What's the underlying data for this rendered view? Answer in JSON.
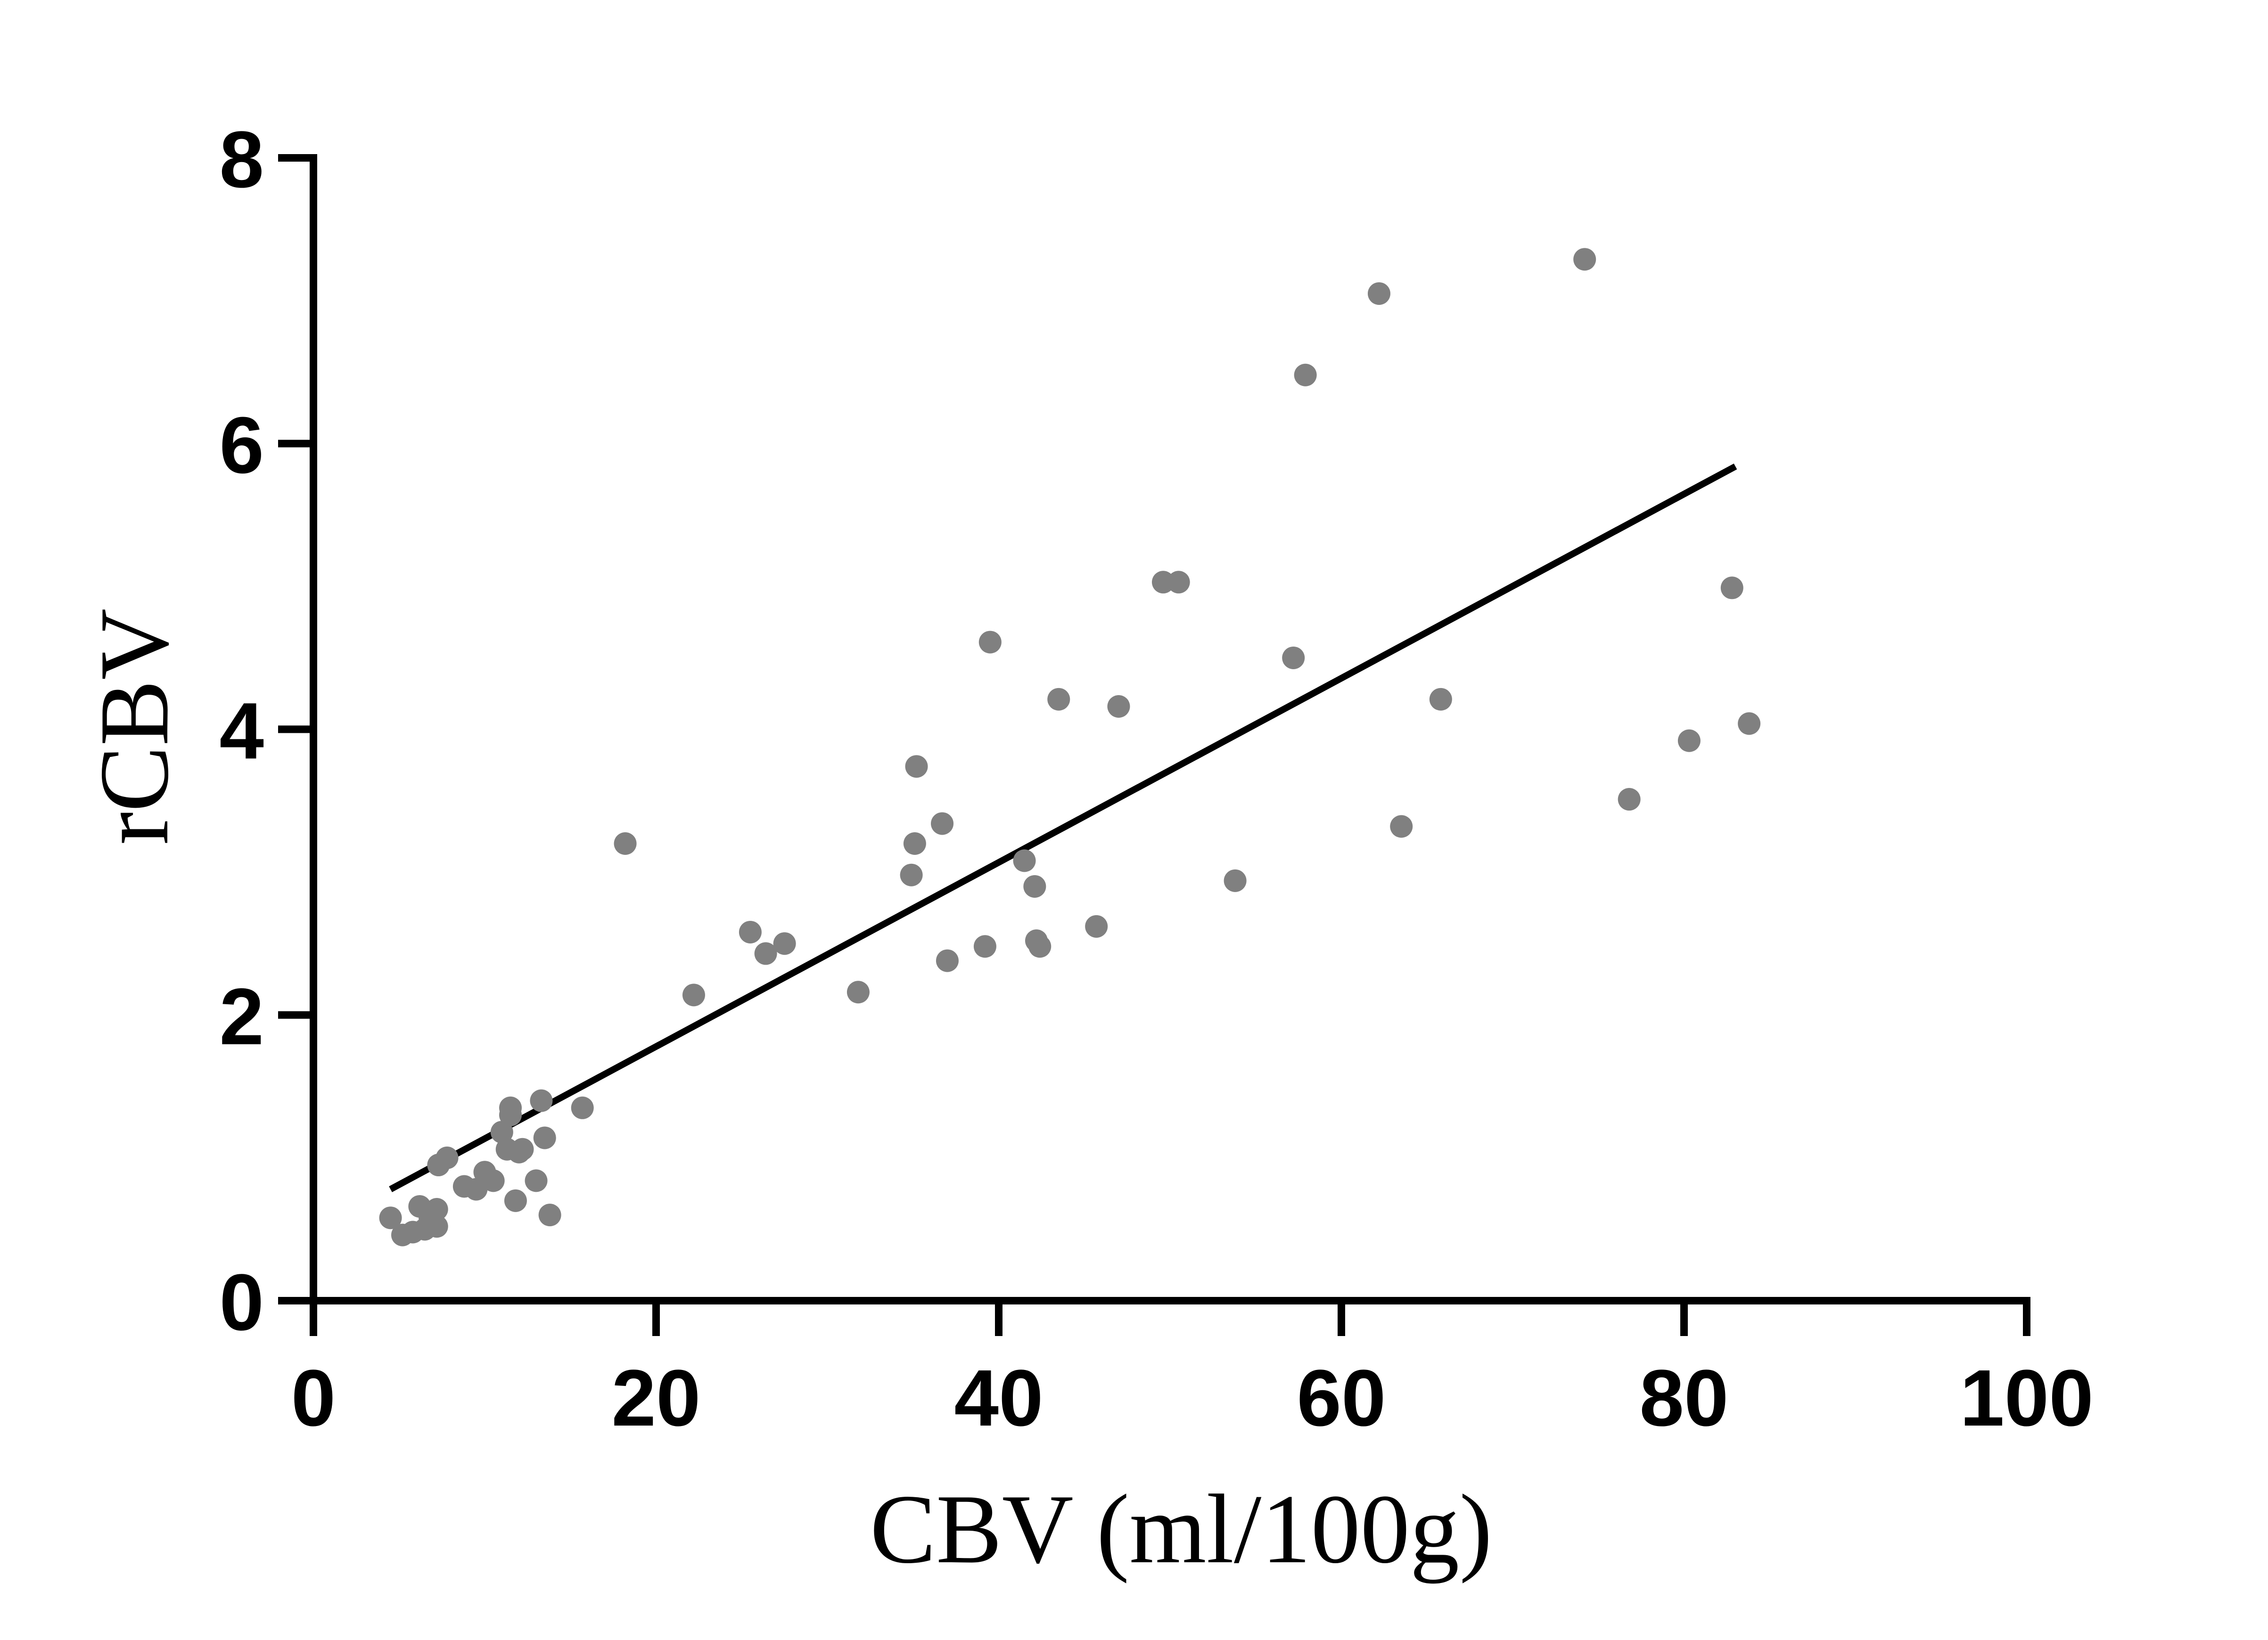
{
  "chart_data": {
    "type": "scatter",
    "xlabel": "CBV (ml/100g)",
    "ylabel": "rCBV",
    "xlim": [
      0,
      100
    ],
    "ylim": [
      0,
      8
    ],
    "x_ticks": [
      0,
      20,
      40,
      60,
      80,
      100
    ],
    "y_ticks": [
      0,
      2,
      4,
      6,
      8
    ],
    "x_tick_labels": [
      "0",
      "20",
      "40",
      "60",
      "80",
      "100"
    ],
    "y_tick_labels": [
      "0",
      "2",
      "4",
      "6",
      "8"
    ],
    "grid": false,
    "legend": "none",
    "point_color": "#808080",
    "line_color": "#000000",
    "points": [
      {
        "x": 4.5,
        "y": 0.58
      },
      {
        "x": 5.2,
        "y": 0.46
      },
      {
        "x": 5.8,
        "y": 0.48
      },
      {
        "x": 6.2,
        "y": 0.66
      },
      {
        "x": 6.5,
        "y": 0.5
      },
      {
        "x": 6.8,
        "y": 0.58
      },
      {
        "x": 7.2,
        "y": 0.52
      },
      {
        "x": 7.2,
        "y": 0.64
      },
      {
        "x": 7.3,
        "y": 0.95
      },
      {
        "x": 7.8,
        "y": 1.0
      },
      {
        "x": 8.8,
        "y": 0.8
      },
      {
        "x": 9.5,
        "y": 0.78
      },
      {
        "x": 10.0,
        "y": 0.9
      },
      {
        "x": 10.5,
        "y": 0.84
      },
      {
        "x": 11.0,
        "y": 1.18
      },
      {
        "x": 11.3,
        "y": 1.06
      },
      {
        "x": 11.5,
        "y": 1.3
      },
      {
        "x": 11.5,
        "y": 1.35
      },
      {
        "x": 11.8,
        "y": 0.7
      },
      {
        "x": 12.0,
        "y": 1.04
      },
      {
        "x": 12.2,
        "y": 1.06
      },
      {
        "x": 13.0,
        "y": 0.84
      },
      {
        "x": 13.3,
        "y": 1.4
      },
      {
        "x": 13.5,
        "y": 1.14
      },
      {
        "x": 13.8,
        "y": 0.6
      },
      {
        "x": 15.7,
        "y": 1.35
      },
      {
        "x": 18.2,
        "y": 3.2
      },
      {
        "x": 22.2,
        "y": 2.14
      },
      {
        "x": 25.5,
        "y": 2.58
      },
      {
        "x": 26.4,
        "y": 2.43
      },
      {
        "x": 27.5,
        "y": 2.5
      },
      {
        "x": 31.8,
        "y": 2.16
      },
      {
        "x": 34.9,
        "y": 2.98
      },
      {
        "x": 35.1,
        "y": 3.2
      },
      {
        "x": 35.2,
        "y": 3.74
      },
      {
        "x": 36.7,
        "y": 3.34
      },
      {
        "x": 37.0,
        "y": 2.38
      },
      {
        "x": 39.2,
        "y": 2.48
      },
      {
        "x": 39.5,
        "y": 4.61
      },
      {
        "x": 41.5,
        "y": 3.08
      },
      {
        "x": 42.1,
        "y": 2.9
      },
      {
        "x": 42.2,
        "y": 2.52
      },
      {
        "x": 42.4,
        "y": 2.48
      },
      {
        "x": 43.5,
        "y": 4.21
      },
      {
        "x": 45.7,
        "y": 2.62
      },
      {
        "x": 47.0,
        "y": 4.16
      },
      {
        "x": 49.6,
        "y": 5.03
      },
      {
        "x": 50.5,
        "y": 5.03
      },
      {
        "x": 53.8,
        "y": 2.94
      },
      {
        "x": 57.2,
        "y": 4.5
      },
      {
        "x": 57.9,
        "y": 6.48
      },
      {
        "x": 62.2,
        "y": 7.05
      },
      {
        "x": 63.5,
        "y": 3.32
      },
      {
        "x": 65.8,
        "y": 4.21
      },
      {
        "x": 74.2,
        "y": 7.29
      },
      {
        "x": 76.8,
        "y": 3.51
      },
      {
        "x": 80.3,
        "y": 3.92
      },
      {
        "x": 82.8,
        "y": 4.99
      },
      {
        "x": 83.8,
        "y": 4.04
      }
    ],
    "fit_line": {
      "x": [
        4.5,
        83.0
      ],
      "y": [
        0.78,
        5.84
      ]
    }
  }
}
